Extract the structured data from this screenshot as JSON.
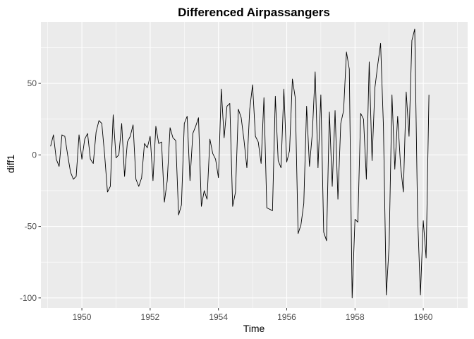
{
  "chart_data": {
    "type": "line",
    "title": "Differenced Airpassangers",
    "xlabel": "Time",
    "ylabel": "diff1",
    "xlim": [
      1948.8,
      1961.3
    ],
    "ylim": [
      -107,
      93
    ],
    "x_ticks": [
      1950,
      1952,
      1954,
      1956,
      1958,
      1960
    ],
    "x_tick_labels": [
      "1950",
      "1952",
      "1954",
      "1956",
      "1958",
      "1960"
    ],
    "y_ticks": [
      -100,
      -50,
      0,
      50
    ],
    "y_tick_labels": [
      "-100",
      "-50",
      "0",
      "50"
    ],
    "grid": true,
    "background_color": "#ebebeb",
    "grid_major_color": "#ffffff",
    "line_color": "#000000",
    "series": [
      {
        "x_start": 1949.0833,
        "x_step": 0.083333,
        "values": [
          6,
          14,
          -3,
          -8,
          14,
          13,
          0,
          -12,
          -17,
          -15,
          14,
          -3,
          11,
          15,
          -3,
          -6,
          16,
          24,
          22,
          0,
          -26,
          -22,
          28,
          -2,
          0,
          22,
          -15,
          9,
          13,
          21,
          -17,
          -22,
          -16,
          8,
          5,
          13,
          -18,
          20,
          8,
          9,
          -33,
          -18,
          19,
          12,
          10,
          -42,
          -35,
          22,
          27,
          -18,
          15,
          20,
          26,
          -36,
          -25,
          -31,
          11,
          1,
          -3,
          -16,
          46,
          12,
          34,
          36,
          -36,
          -26,
          32,
          26,
          10,
          -9,
          32,
          49,
          13,
          9,
          -6,
          40,
          -37,
          -38,
          -39,
          41,
          -4,
          -9,
          46,
          -5,
          3,
          53,
          40,
          -55,
          -49,
          -34,
          34,
          -8,
          15,
          58,
          -9,
          42,
          -54,
          -60,
          30,
          -22,
          31,
          -31,
          22,
          31,
          72,
          60,
          -100,
          -45,
          -47,
          29,
          25,
          -17,
          65,
          -4,
          47,
          63,
          78,
          20,
          -98,
          -63,
          42,
          -10,
          27,
          -7,
          -26,
          44,
          13,
          80,
          88,
          -42,
          -98,
          -46,
          -72,
          42
        ]
      }
    ]
  }
}
